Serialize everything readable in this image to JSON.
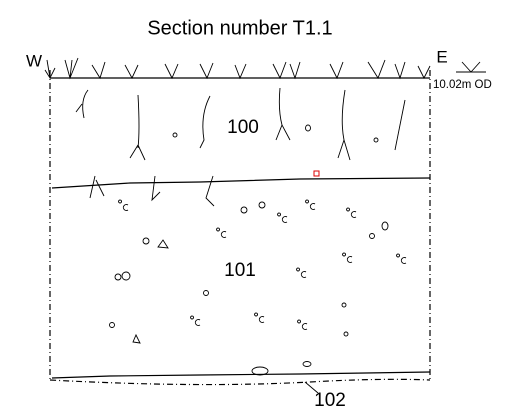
{
  "title": "Section number T1.1",
  "labels": {
    "west": "W",
    "east": "E",
    "datum": "10.02m OD"
  },
  "layers": [
    {
      "label": "100"
    },
    {
      "label": "101"
    },
    {
      "label": "102"
    }
  ]
}
